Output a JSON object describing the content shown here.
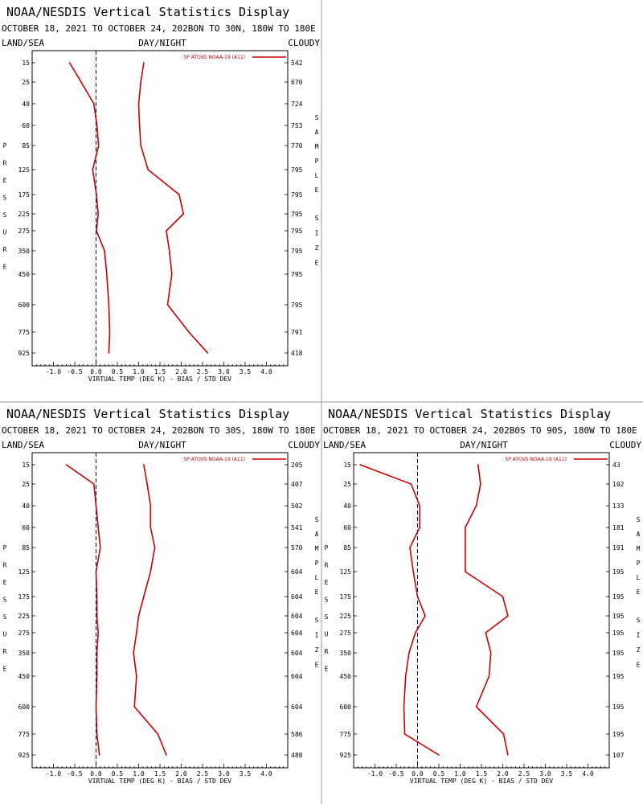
{
  "page": {
    "title": "NOAA/NESDIS Vertical Statistics Display",
    "top_left_label": "LAND/SEA",
    "top_mid_label": "DAY/NIGHT",
    "top_right_label": "CLOUDY",
    "left_axis_label": "PRESSURE",
    "right_axis_label_1": "SAMPLE",
    "right_axis_label_2": "SIZE",
    "xlabel": "VIRTUAL TEMP (DEG K) - BIAS / STD DEV",
    "legend_label": "SP ATOVS NOAA-19 (A11)",
    "line_color": "#cc0000",
    "zero_line_color": "#000080",
    "border_color": "#999999"
  },
  "chart_data": [
    {
      "type": "line",
      "subtitle": "OCTOBER 18, 2021 TO OCTOBER 24, 202BON TO 30N, 180W TO 180E",
      "xlim": [
        -1.5,
        4.5
      ],
      "xticks": [
        "-1.0",
        "-0.5",
        "0.0",
        "0.5",
        "1.0",
        "1.5",
        "2.0",
        "2.5",
        "3.0",
        "3.5",
        "4.0"
      ],
      "xtick_values": [
        -1.0,
        -0.5,
        0.0,
        0.5,
        1.0,
        1.5,
        2.0,
        2.5,
        3.0,
        3.5,
        4.0
      ],
      "pressure_levels": [
        "15",
        "25",
        "40",
        "60",
        "85",
        "125",
        "175",
        "225",
        "275",
        "350",
        "450",
        "600",
        "775",
        "925"
      ],
      "sample_size": [
        "542",
        "670",
        "724",
        "753",
        "770",
        "795",
        "795",
        "795",
        "795",
        "795",
        "795",
        "795",
        "791",
        "418"
      ],
      "series": [
        {
          "name": "BIAS",
          "values": [
            -0.62,
            -0.35,
            -0.05,
            0.02,
            0.06,
            -0.08,
            0.01,
            0.05,
            0.01,
            0.2,
            0.25,
            0.3,
            0.32,
            0.3
          ]
        },
        {
          "name": "STD DEV",
          "values": [
            1.12,
            1.05,
            1.0,
            1.02,
            1.05,
            1.22,
            1.95,
            2.05,
            1.65,
            1.72,
            1.78,
            1.68,
            2.18,
            2.62
          ]
        }
      ]
    },
    {
      "type": "line",
      "subtitle": "OCTOBER 18, 2021 TO OCTOBER 24, 202BON TO 30S, 180W TO 180E",
      "xlim": [
        -1.5,
        4.5
      ],
      "xticks": [
        "-1.0",
        "-0.5",
        "0.0",
        "0.5",
        "1.0",
        "1.5",
        "2.0",
        "2.5",
        "3.0",
        "3.5",
        "4.0"
      ],
      "xtick_values": [
        -1.0,
        -0.5,
        0.0,
        0.5,
        1.0,
        1.5,
        2.0,
        2.5,
        3.0,
        3.5,
        4.0
      ],
      "pressure_levels": [
        "15",
        "25",
        "40",
        "60",
        "85",
        "125",
        "175",
        "225",
        "275",
        "350",
        "450",
        "600",
        "775",
        "925"
      ],
      "sample_size": [
        "205",
        "407",
        "502",
        "541",
        "570",
        "604",
        "604",
        "604",
        "604",
        "604",
        "604",
        "604",
        "586",
        "488"
      ],
      "series": [
        {
          "name": "BIAS",
          "values": [
            -0.7,
            -0.05,
            0.0,
            0.05,
            0.1,
            0.0,
            0.02,
            0.02,
            0.05,
            0.02,
            0.02,
            0.0,
            0.02,
            0.08
          ]
        },
        {
          "name": "STD DEV",
          "values": [
            1.12,
            1.2,
            1.28,
            1.28,
            1.38,
            1.28,
            1.12,
            1.0,
            0.95,
            0.88,
            0.95,
            0.9,
            1.45,
            1.65
          ]
        }
      ]
    },
    {
      "type": "line",
      "subtitle": "OCTOBER 18, 2021 TO OCTOBER 24, 202B0S TO 90S, 180W TO 180E",
      "xlim": [
        -1.5,
        4.5
      ],
      "xticks": [
        "-1.0",
        "-0.5",
        "0.0",
        "0.5",
        "1.0",
        "1.5",
        "2.0",
        "2.5",
        "3.0",
        "3.5",
        "4.0"
      ],
      "xtick_values": [
        -1.0,
        -0.5,
        0.0,
        0.5,
        1.0,
        1.5,
        2.0,
        2.5,
        3.0,
        3.5,
        4.0
      ],
      "pressure_levels": [
        "15",
        "25",
        "40",
        "60",
        "85",
        "125",
        "175",
        "225",
        "275",
        "350",
        "450",
        "600",
        "775",
        "925"
      ],
      "sample_size": [
        "43",
        "102",
        "133",
        "181",
        "191",
        "195",
        "195",
        "195",
        "195",
        "195",
        "195",
        "195",
        "195",
        "107"
      ],
      "series": [
        {
          "name": "BIAS",
          "values": [
            -1.35,
            -0.15,
            0.05,
            0.05,
            -0.18,
            -0.1,
            0.0,
            0.18,
            -0.05,
            -0.2,
            -0.28,
            -0.32,
            -0.3,
            0.5
          ]
        },
        {
          "name": "STD DEV",
          "values": [
            1.42,
            1.48,
            1.38,
            1.12,
            1.12,
            1.12,
            2.0,
            2.12,
            1.6,
            1.72,
            1.68,
            1.38,
            2.02,
            2.12
          ]
        }
      ]
    }
  ]
}
